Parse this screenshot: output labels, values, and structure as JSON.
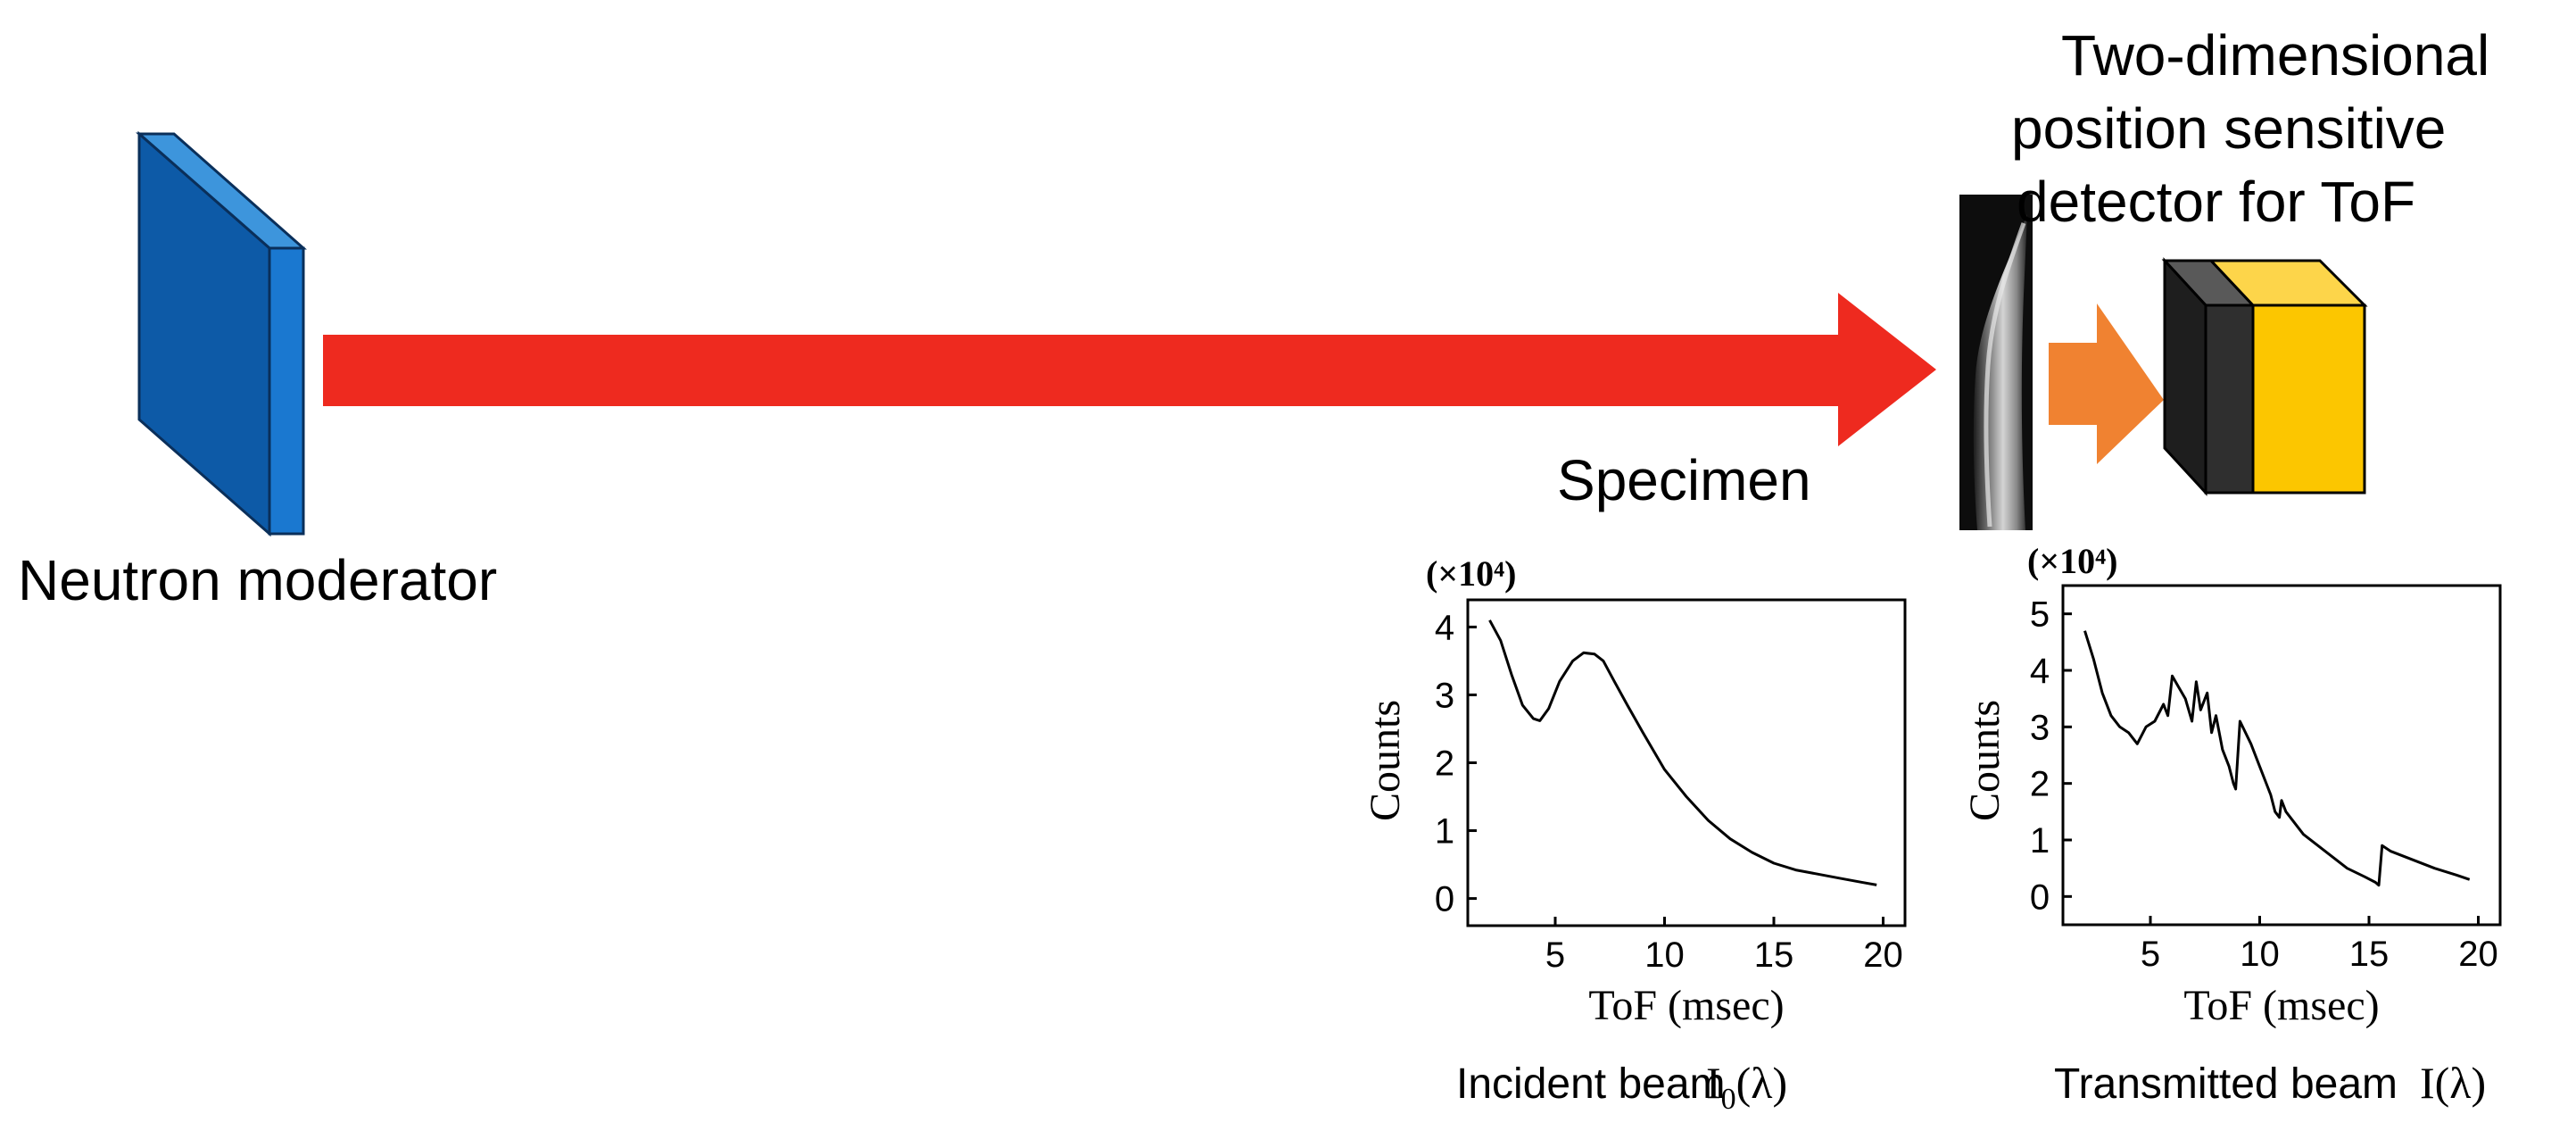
{
  "labels": {
    "moderator": "Neutron moderator",
    "specimen": "Specimen",
    "detector": [
      "Two-dimensional",
      "position sensitive",
      "detector for ToF"
    ]
  },
  "colors": {
    "moderator_face": "#0d5aa7",
    "moderator_side": "#1a78d0",
    "moderator_top": "#3d95dc",
    "beam": "#ee2a1f",
    "small_arrow": "#f08231",
    "detector_yellow": "#fcc600",
    "detector_yellow_top": "#fdd54a",
    "detector_dark": "#2f2f2f",
    "detector_dark_top": "#595959"
  },
  "icons": {
    "moderator": "moderator-block-icon",
    "specimen": "specimen-radiograph-icon",
    "detector": "detector-box-icon"
  },
  "chart_data": [
    {
      "type": "line",
      "caption": "Incident beam",
      "caption_symbol_main": "I",
      "caption_symbol_sub": "0",
      "caption_symbol_arg": "(λ)",
      "multiplier_label": "(×10⁴)",
      "xlabel": "ToF (msec)",
      "ylabel": "Counts",
      "xlim": [
        1,
        21
      ],
      "ylim": [
        -0.4,
        4.4
      ],
      "xticks": [
        "5",
        "10",
        "15",
        "20"
      ],
      "yticks": [
        "0",
        "1",
        "2",
        "3",
        "4"
      ],
      "x": [
        2.0,
        2.5,
        3.0,
        3.5,
        4.0,
        4.3,
        4.7,
        5.2,
        5.8,
        6.3,
        6.8,
        7.2,
        7.7,
        8.3,
        9.0,
        10.0,
        11.0,
        12.0,
        13.0,
        14.0,
        15.0,
        16.0,
        17.0,
        18.0,
        19.0,
        19.7
      ],
      "y": [
        4.1,
        3.8,
        3.3,
        2.85,
        2.65,
        2.62,
        2.8,
        3.2,
        3.5,
        3.62,
        3.6,
        3.5,
        3.2,
        2.85,
        2.45,
        1.9,
        1.5,
        1.15,
        0.88,
        0.68,
        0.52,
        0.42,
        0.36,
        0.3,
        0.24,
        0.2
      ]
    },
    {
      "type": "line",
      "caption": "Transmitted beam",
      "caption_symbol_main": "I",
      "caption_symbol_sub": "",
      "caption_symbol_arg": "(λ)",
      "multiplier_label": "(×10⁴)",
      "xlabel": "ToF (msec)",
      "ylabel": "Counts",
      "xlim": [
        1,
        21
      ],
      "ylim": [
        -0.5,
        5.5
      ],
      "xticks": [
        "5",
        "10",
        "15",
        "20"
      ],
      "yticks": [
        "0",
        "1",
        "2",
        "3",
        "4",
        "5"
      ],
      "x": [
        2.0,
        2.4,
        2.8,
        3.2,
        3.6,
        4.0,
        4.4,
        4.8,
        5.2,
        5.6,
        5.8,
        6.0,
        6.3,
        6.6,
        6.9,
        7.1,
        7.3,
        7.6,
        7.8,
        8.0,
        8.3,
        8.6,
        8.8,
        8.9,
        9.1,
        9.6,
        10.0,
        10.5,
        10.7,
        10.9,
        11.0,
        11.2,
        12.0,
        13.0,
        14.0,
        14.8,
        15.3,
        15.45,
        15.6,
        16.0,
        17.0,
        18.0,
        19.0,
        19.6
      ],
      "y": [
        4.7,
        4.2,
        3.6,
        3.2,
        3.0,
        2.9,
        2.7,
        3.0,
        3.1,
        3.4,
        3.2,
        3.9,
        3.7,
        3.5,
        3.1,
        3.8,
        3.3,
        3.6,
        2.9,
        3.2,
        2.6,
        2.3,
        2.0,
        1.9,
        3.1,
        2.7,
        2.3,
        1.8,
        1.5,
        1.4,
        1.7,
        1.5,
        1.1,
        0.8,
        0.5,
        0.35,
        0.25,
        0.2,
        0.9,
        0.8,
        0.65,
        0.5,
        0.38,
        0.3
      ]
    }
  ]
}
